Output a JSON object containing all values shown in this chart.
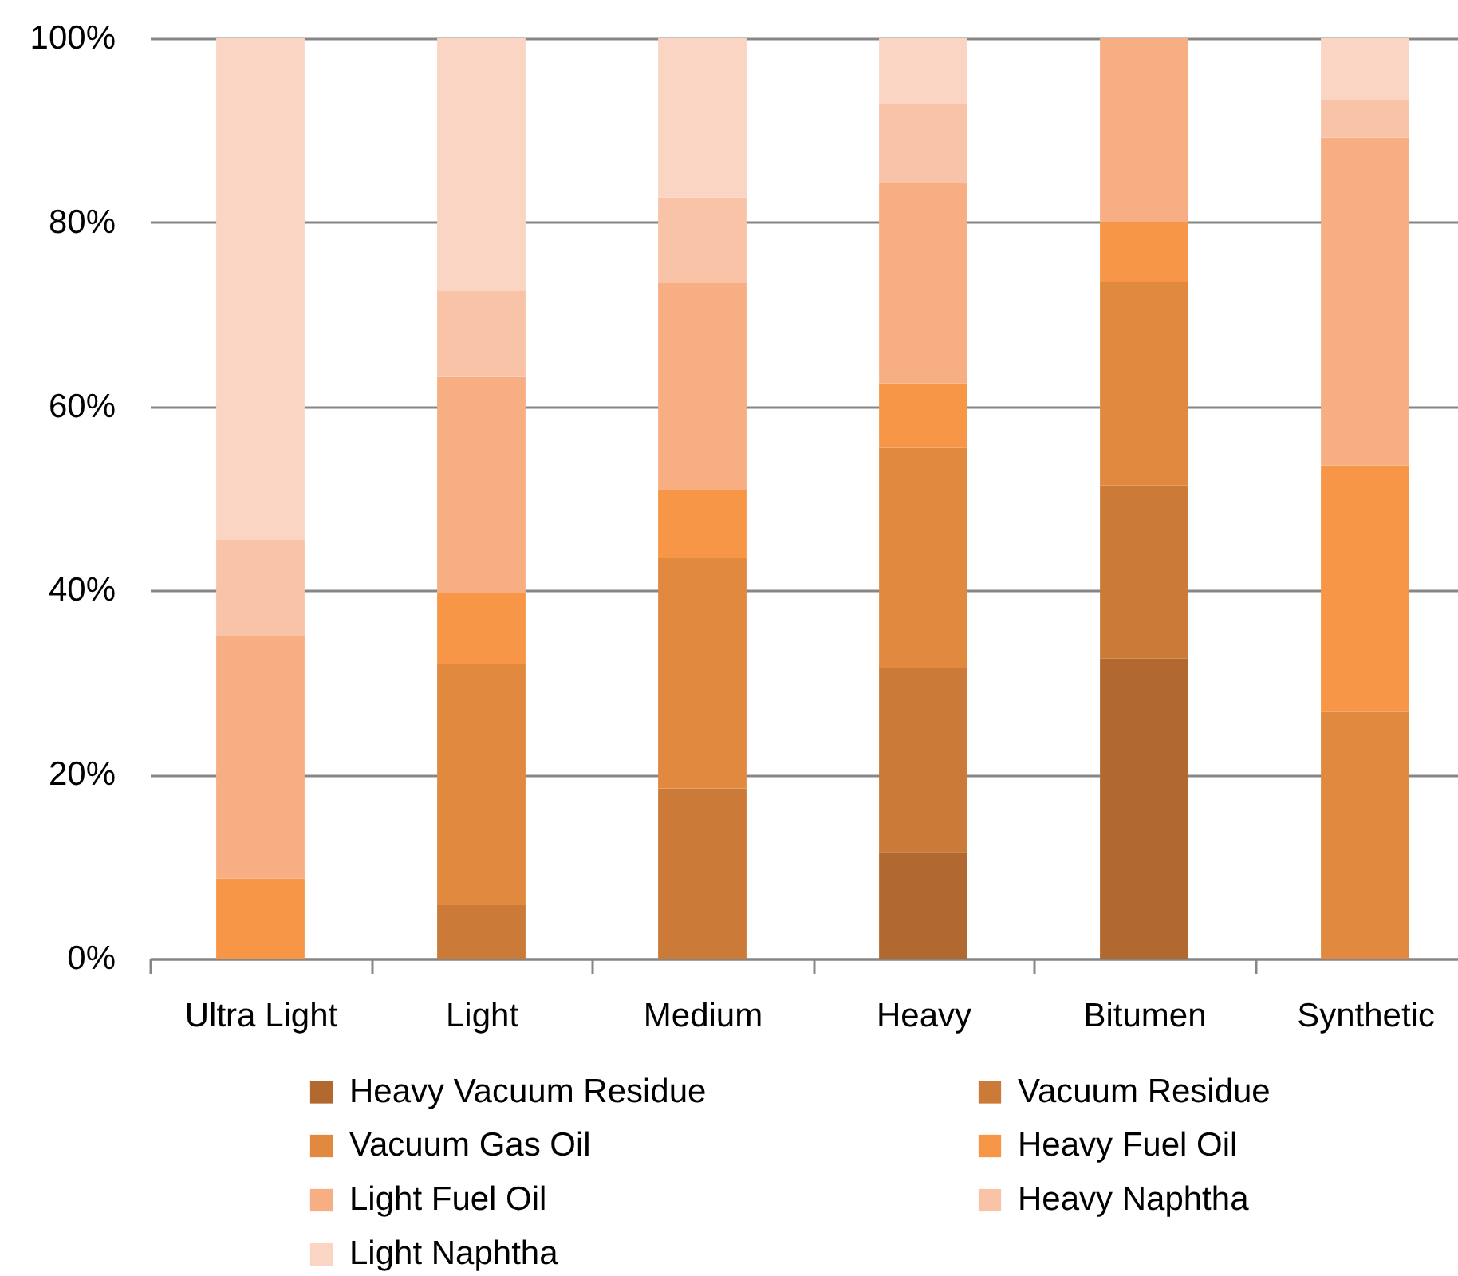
{
  "chart_data": {
    "type": "bar",
    "stacked": true,
    "categories": [
      "Ultra Light",
      "Light",
      "Medium",
      "Heavy",
      "Bitumen",
      "Synthetic"
    ],
    "series": [
      {
        "name": "Heavy Vacuum Residue",
        "color": "#b16930",
        "values": [
          null,
          null,
          null,
          11.6,
          32.6,
          null
        ]
      },
      {
        "name": "Vacuum Residue",
        "color": "#cb7a38",
        "values": [
          null,
          5.8,
          18.5,
          20.0,
          18.8,
          null
        ]
      },
      {
        "name": "Vacuum Gas Oil",
        "color": "#e1893f",
        "values": [
          null,
          26.2,
          25.0,
          23.9,
          22.1,
          26.8
        ]
      },
      {
        "name": "Heavy Fuel Oil",
        "color": "#f69646",
        "values": [
          8.7,
          7.7,
          7.4,
          7.0,
          6.6,
          26.8
        ]
      },
      {
        "name": "Light Fuel Oil",
        "color": "#f7ae83",
        "values": [
          26.3,
          23.5,
          22.5,
          21.8,
          19.9,
          35.6
        ]
      },
      {
        "name": "Heavy Naphtha",
        "color": "#f9c3a8",
        "values": [
          10.5,
          9.4,
          9.3,
          8.6,
          null,
          4.1
        ]
      },
      {
        "name": "Light Naphtha",
        "color": "#fad5c4",
        "values": [
          54.5,
          27.4,
          17.3,
          7.1,
          null,
          6.7
        ]
      }
    ],
    "ylim": [
      0,
      100
    ],
    "yticks": [
      {
        "value": 0,
        "label": "0%"
      },
      {
        "value": 20,
        "label": "20%"
      },
      {
        "value": 40,
        "label": "40%"
      },
      {
        "value": 60,
        "label": "60%"
      },
      {
        "value": 80,
        "label": "80%"
      },
      {
        "value": 100,
        "label": "100%"
      }
    ],
    "grid": "y",
    "legend": "bottom"
  }
}
